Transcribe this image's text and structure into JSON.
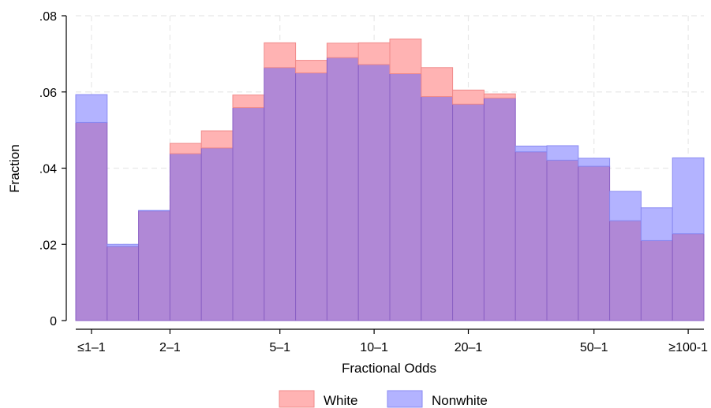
{
  "chart_data": {
    "type": "bar",
    "xlabel": "Fractional Odds",
    "ylabel": "Fraction",
    "ylim": [
      0,
      0.08
    ],
    "yticks": [
      0,
      0.02,
      0.04,
      0.06,
      0.08
    ],
    "ytick_labels": [
      "0",
      ".02",
      ".04",
      ".06",
      ".08"
    ],
    "xtick_labels": [
      "≤1–1",
      "2–1",
      "5–1",
      "10–1",
      "20–1",
      "50–1",
      "≥100-1"
    ],
    "xtick_bins": [
      0.5,
      3,
      6.5,
      9.5,
      12.5,
      16.5,
      19.5
    ],
    "grid": true,
    "legend_position": "bottom",
    "series": [
      {
        "name": "White",
        "color": "#ffb3b3",
        "edge": "#f08a8a",
        "values": [
          0.052,
          0.0195,
          0.0288,
          0.0465,
          0.0498,
          0.0592,
          0.0729,
          0.0683,
          0.0728,
          0.0729,
          0.0739,
          0.0664,
          0.0605,
          0.0595,
          0.0443,
          0.0421,
          0.0405,
          0.0262,
          0.021,
          0.0228
        ]
      },
      {
        "name": "Nonwhite",
        "color": "#b3b3ff",
        "edge": "#8a8af2",
        "values": [
          0.0593,
          0.02,
          0.0289,
          0.0438,
          0.0453,
          0.0559,
          0.0664,
          0.065,
          0.069,
          0.0672,
          0.0648,
          0.0588,
          0.0568,
          0.0584,
          0.0458,
          0.0459,
          0.0426,
          0.0339,
          0.0296,
          0.0427
        ]
      }
    ],
    "overlap_color": "#b088d6"
  }
}
